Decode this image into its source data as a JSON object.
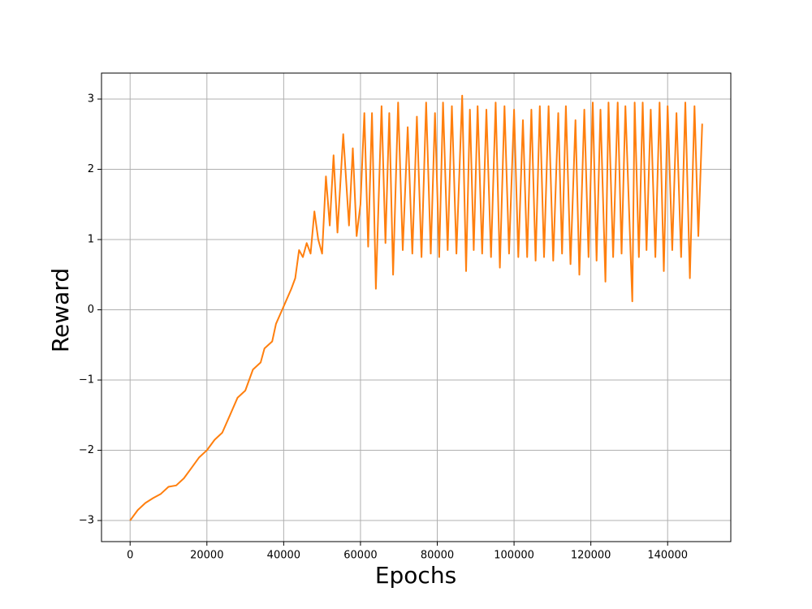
{
  "chart_data": {
    "type": "line",
    "x_label": "Epochs",
    "y_label": "Reward",
    "xlim": [
      -7450,
      156450
    ],
    "ylim": [
      -3.3,
      3.37
    ],
    "xticks": [
      0,
      20000,
      40000,
      60000,
      80000,
      100000,
      120000,
      140000
    ],
    "yticks": [
      {
        "value": -3,
        "label": "−3"
      },
      {
        "value": -2,
        "label": "−2"
      },
      {
        "value": -1,
        "label": "−1"
      },
      0,
      1,
      2,
      3
    ],
    "grid": true,
    "color": "#ff7f0e",
    "x": [
      0,
      2000,
      4000,
      6000,
      8000,
      10000,
      12000,
      14000,
      16000,
      18000,
      20000,
      22000,
      24000,
      26000,
      28000,
      30000,
      32000,
      34000,
      35000,
      37000,
      38000,
      40000,
      42000,
      43000,
      44000,
      45000,
      46000,
      47000,
      48000,
      49000,
      50000,
      51000,
      52000,
      53000,
      54000,
      55500,
      57000,
      58000,
      59000,
      60000,
      61000,
      62000,
      63000,
      64000,
      65500,
      66500,
      67500,
      68500,
      69800,
      71000,
      72300,
      73500,
      74700,
      75900,
      77100,
      78300,
      79400,
      80500,
      81500,
      82700,
      83800,
      85000,
      86500,
      87500,
      88500,
      89500,
      90500,
      91700,
      92800,
      94000,
      95200,
      96300,
      97500,
      98700,
      100000,
      101100,
      102300,
      103400,
      104500,
      105600,
      106700,
      107800,
      109000,
      110200,
      111500,
      112500,
      113500,
      114700,
      116000,
      117000,
      118300,
      119400,
      120500,
      121500,
      122500,
      123800,
      124600,
      125800,
      127000,
      128000,
      129000,
      130800,
      131400,
      132500,
      133500,
      134500,
      135600,
      136800,
      137900,
      139000,
      140000,
      141200,
      142300,
      143500,
      144600,
      145800,
      147000,
      148000,
      149000
    ],
    "values": [
      -3.0,
      -2.85,
      -2.75,
      -2.68,
      -2.62,
      -2.52,
      -2.5,
      -2.4,
      -2.25,
      -2.1,
      -2.0,
      -1.85,
      -1.75,
      -1.5,
      -1.25,
      -1.15,
      -0.85,
      -0.75,
      -0.55,
      -0.45,
      -0.2,
      0.05,
      0.3,
      0.45,
      0.85,
      0.75,
      0.95,
      0.8,
      1.4,
      1.0,
      0.8,
      1.9,
      1.2,
      2.2,
      1.1,
      2.5,
      1.2,
      2.3,
      1.05,
      1.5,
      2.8,
      0.9,
      2.8,
      0.3,
      2.9,
      0.95,
      2.8,
      0.5,
      2.95,
      0.85,
      2.6,
      0.8,
      2.75,
      0.75,
      2.95,
      0.8,
      2.8,
      0.75,
      2.95,
      0.85,
      2.9,
      0.8,
      3.05,
      0.55,
      2.85,
      0.85,
      2.9,
      0.8,
      2.85,
      0.75,
      2.95,
      0.6,
      2.9,
      0.8,
      2.85,
      0.75,
      2.7,
      0.75,
      2.85,
      0.7,
      2.9,
      0.75,
      2.9,
      0.7,
      2.8,
      0.8,
      2.9,
      0.65,
      2.7,
      0.5,
      2.85,
      0.75,
      2.95,
      0.7,
      2.85,
      0.4,
      2.95,
      0.75,
      2.95,
      0.8,
      2.9,
      0.12,
      2.95,
      0.75,
      2.95,
      0.85,
      2.85,
      0.75,
      2.95,
      0.55,
      2.9,
      0.85,
      2.8,
      0.75,
      2.95,
      0.45,
      2.9,
      1.05,
      2.65
    ]
  }
}
